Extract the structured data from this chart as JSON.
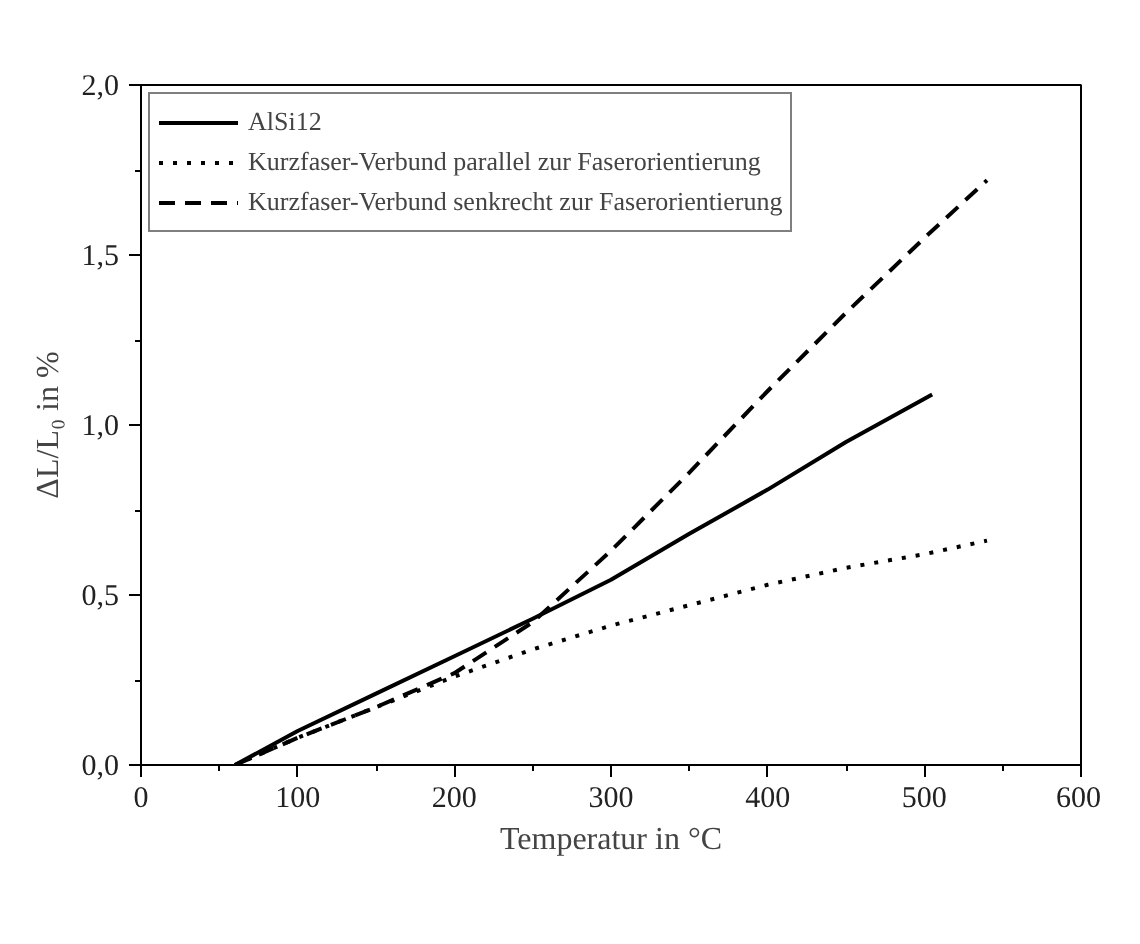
{
  "chart_data": {
    "type": "line",
    "xlabel": "Temperatur in °C",
    "ylabel": "ΔL/L₀ in %",
    "xlim": [
      0,
      600
    ],
    "ylim": [
      0,
      2.0
    ],
    "xticks": [
      0,
      100,
      200,
      300,
      400,
      500,
      600
    ],
    "yticks": [
      {
        "value": 0,
        "label": "0,0"
      },
      {
        "value": 0.5,
        "label": "0,5"
      },
      {
        "value": 1.0,
        "label": "1,0"
      },
      {
        "value": 1.5,
        "label": "1,5"
      },
      {
        "value": 2.0,
        "label": "2,0"
      }
    ],
    "grid": false,
    "legend": "top left",
    "marker": "none",
    "series": [
      {
        "name": "AlSi12",
        "color": "#000000",
        "line_style": "solid",
        "x": [
          60,
          100,
          150,
          200,
          250,
          300,
          350,
          400,
          450,
          505
        ],
        "values": [
          0,
          0.1,
          0.21,
          0.32,
          0.43,
          0.545,
          0.68,
          0.81,
          0.95,
          1.09
        ]
      },
      {
        "name": "Kurzfaser-Verbund parallel zur Faserorientierung",
        "color": "#000000",
        "line_style": "dotted",
        "x": [
          60,
          100,
          150,
          200,
          250,
          300,
          350,
          400,
          450,
          500,
          540
        ],
        "values": [
          0,
          0.08,
          0.17,
          0.26,
          0.34,
          0.41,
          0.47,
          0.53,
          0.58,
          0.62,
          0.66
        ]
      },
      {
        "name": "Kurzfaser-Verbund senkrecht zur Faserorientierung",
        "color": "#000000",
        "line_style": "dashed",
        "x": [
          60,
          100,
          150,
          200,
          250,
          300,
          350,
          400,
          450,
          500,
          540
        ],
        "values": [
          0,
          0.08,
          0.17,
          0.27,
          0.42,
          0.63,
          0.86,
          1.1,
          1.33,
          1.55,
          1.72
        ]
      }
    ]
  }
}
